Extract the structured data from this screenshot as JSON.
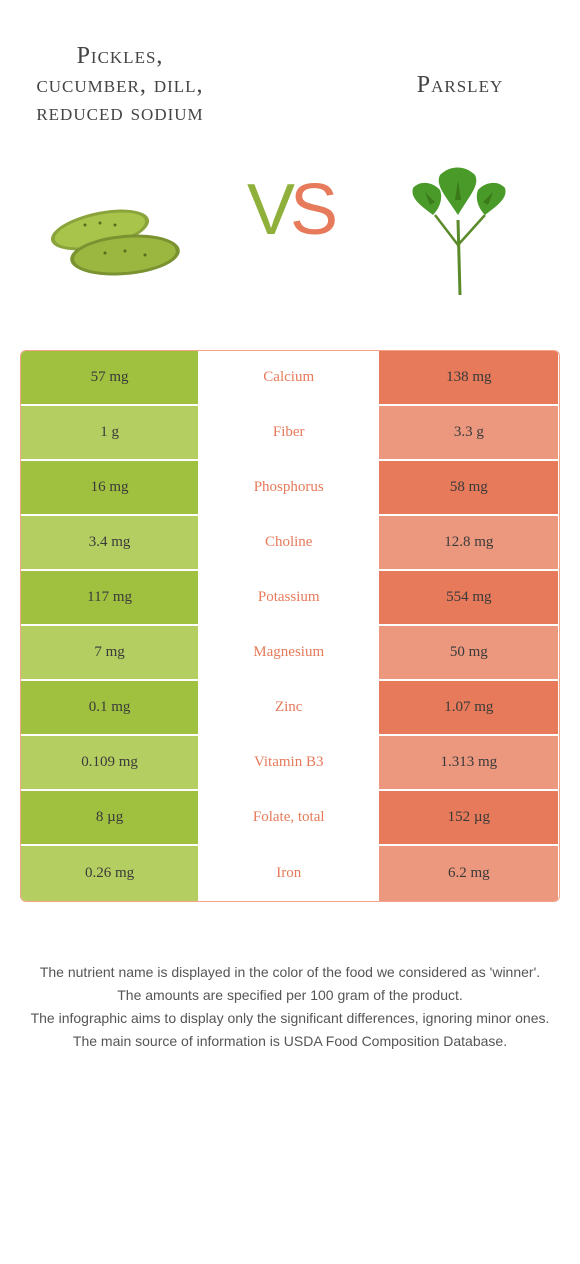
{
  "colors": {
    "green_dark": "#a0c040",
    "green_light": "#b5ce62",
    "orange_dark": "#e67a5a",
    "orange_light": "#ec987e",
    "vs_green": "#8fb13b",
    "vs_orange": "#e67a5a",
    "nutrient_winner_color": "#e67a5a",
    "border": "#f5a389"
  },
  "left_food": {
    "title": "Pickles, cucumber, dill, reduced sodium"
  },
  "right_food": {
    "title": "Parsley"
  },
  "vs": {
    "v": "V",
    "s": "S"
  },
  "nutrients": [
    {
      "name": "Calcium",
      "left": "57 mg",
      "right": "138 mg",
      "winner": "right"
    },
    {
      "name": "Fiber",
      "left": "1 g",
      "right": "3.3 g",
      "winner": "right"
    },
    {
      "name": "Phosphorus",
      "left": "16 mg",
      "right": "58 mg",
      "winner": "right"
    },
    {
      "name": "Choline",
      "left": "3.4 mg",
      "right": "12.8 mg",
      "winner": "right"
    },
    {
      "name": "Potassium",
      "left": "117 mg",
      "right": "554 mg",
      "winner": "right"
    },
    {
      "name": "Magnesium",
      "left": "7 mg",
      "right": "50 mg",
      "winner": "right"
    },
    {
      "name": "Zinc",
      "left": "0.1 mg",
      "right": "1.07 mg",
      "winner": "right"
    },
    {
      "name": "Vitamin B3",
      "left": "0.109 mg",
      "right": "1.313 mg",
      "winner": "right"
    },
    {
      "name": "Folate, total",
      "left": "8 µg",
      "right": "152 µg",
      "winner": "right"
    },
    {
      "name": "Iron",
      "left": "0.26 mg",
      "right": "6.2 mg",
      "winner": "right"
    }
  ],
  "footer": {
    "line1": "The nutrient name is displayed in the color of the food we considered as 'winner'.",
    "line2": "The amounts are specified per 100 gram of the product.",
    "line3": "The infographic aims to display only the significant differences, ignoring minor ones.",
    "line4": "The main source of information is USDA Food Composition Database."
  }
}
